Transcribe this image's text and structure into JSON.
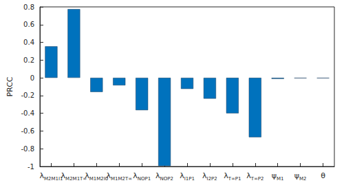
{
  "chart_data": {
    "type": "bar",
    "y_label": "PRCC",
    "categories": [
      "λM2M1I1",
      "λM2M1T∞",
      "λM1M2I0",
      "λM1M2T∞",
      "λNOP1",
      "λNOP2",
      "λI1P1",
      "λI2P2",
      "λT∞P1",
      "λT∞P2",
      "ψM1",
      "ψM2",
      "θ"
    ],
    "values": [
      0.355,
      0.775,
      -0.16,
      -0.085,
      -0.365,
      -0.995,
      -0.125,
      -0.235,
      -0.4,
      -0.67,
      -0.012,
      -0.005,
      -0.005
    ],
    "color": "#0072bd",
    "ylim": [
      -1,
      0.8
    ],
    "yticks": [
      -1,
      -0.8,
      -0.6,
      -0.4,
      -0.2,
      0,
      0.2,
      0.4,
      0.6,
      0.8
    ],
    "grid": false
  }
}
